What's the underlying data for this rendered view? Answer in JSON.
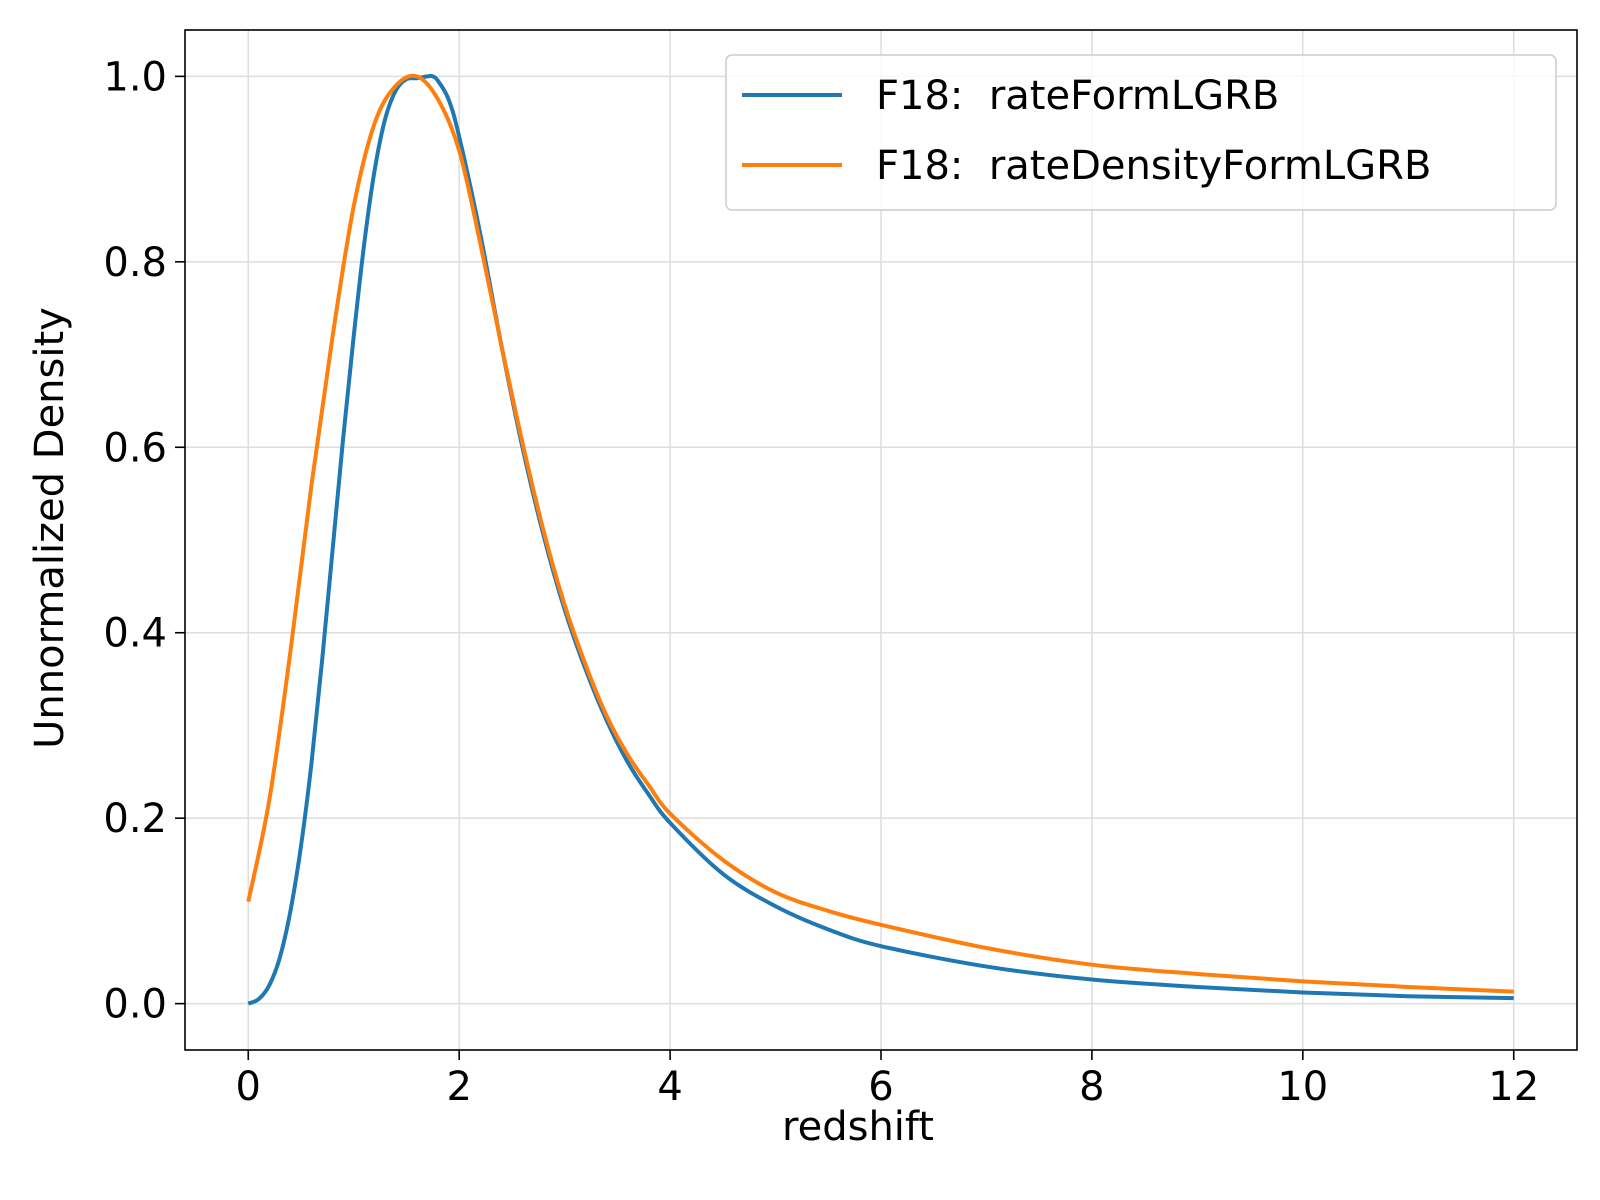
{
  "chart_data": {
    "type": "line",
    "xlabel": "redshift",
    "ylabel": "Unnormalized Density",
    "xlim": [
      -0.6,
      12.6
    ],
    "ylim": [
      -0.05,
      1.05
    ],
    "xticks": [
      "0",
      "2",
      "4",
      "6",
      "8",
      "10",
      "12"
    ],
    "yticks": [
      "0.0",
      "0.2",
      "0.4",
      "0.6",
      "0.8",
      "1.0"
    ],
    "grid": true,
    "legend_position": "top-right",
    "series": [
      {
        "name": "F18:  rateFormLGRB",
        "color": "#1f77b4",
        "x": [
          0,
          0.1,
          0.2,
          0.3,
          0.4,
          0.5,
          0.6,
          0.7,
          0.8,
          0.9,
          1.0,
          1.1,
          1.2,
          1.3,
          1.4,
          1.5,
          1.6,
          1.7,
          1.75,
          1.8,
          1.9,
          2.0,
          2.2,
          2.4,
          2.6,
          2.8,
          3.0,
          3.2,
          3.4,
          3.6,
          3.8,
          4.0,
          4.5,
          5.0,
          5.5,
          6.0,
          7.0,
          8.0,
          9.0,
          10.0,
          11.0,
          12.0
        ],
        "y": [
          0.0,
          0.005,
          0.02,
          0.05,
          0.1,
          0.17,
          0.26,
          0.37,
          0.49,
          0.61,
          0.72,
          0.82,
          0.9,
          0.955,
          0.985,
          0.997,
          0.998,
          1.0,
          1.0,
          0.995,
          0.975,
          0.935,
          0.83,
          0.71,
          0.6,
          0.505,
          0.425,
          0.36,
          0.305,
          0.26,
          0.225,
          0.195,
          0.14,
          0.105,
          0.08,
          0.062,
          0.04,
          0.026,
          0.018,
          0.012,
          0.008,
          0.006
        ]
      },
      {
        "name": "F18:  rateDensityFormLGRB",
        "color": "#ff7f0e",
        "x": [
          0,
          0.2,
          0.4,
          0.6,
          0.8,
          1.0,
          1.2,
          1.4,
          1.6,
          1.8,
          2.0,
          2.2,
          2.4,
          2.6,
          2.8,
          3.0,
          3.2,
          3.4,
          3.6,
          3.8,
          4.0,
          4.5,
          5.0,
          5.5,
          6.0,
          7.0,
          8.0,
          9.0,
          10.0,
          11.0,
          12.0
        ],
        "y": [
          0.11,
          0.22,
          0.38,
          0.56,
          0.72,
          0.86,
          0.95,
          0.99,
          1.0,
          0.975,
          0.92,
          0.82,
          0.71,
          0.605,
          0.51,
          0.43,
          0.365,
          0.31,
          0.268,
          0.235,
          0.205,
          0.155,
          0.12,
          0.1,
          0.085,
          0.06,
          0.042,
          0.032,
          0.024,
          0.018,
          0.013
        ]
      }
    ]
  }
}
